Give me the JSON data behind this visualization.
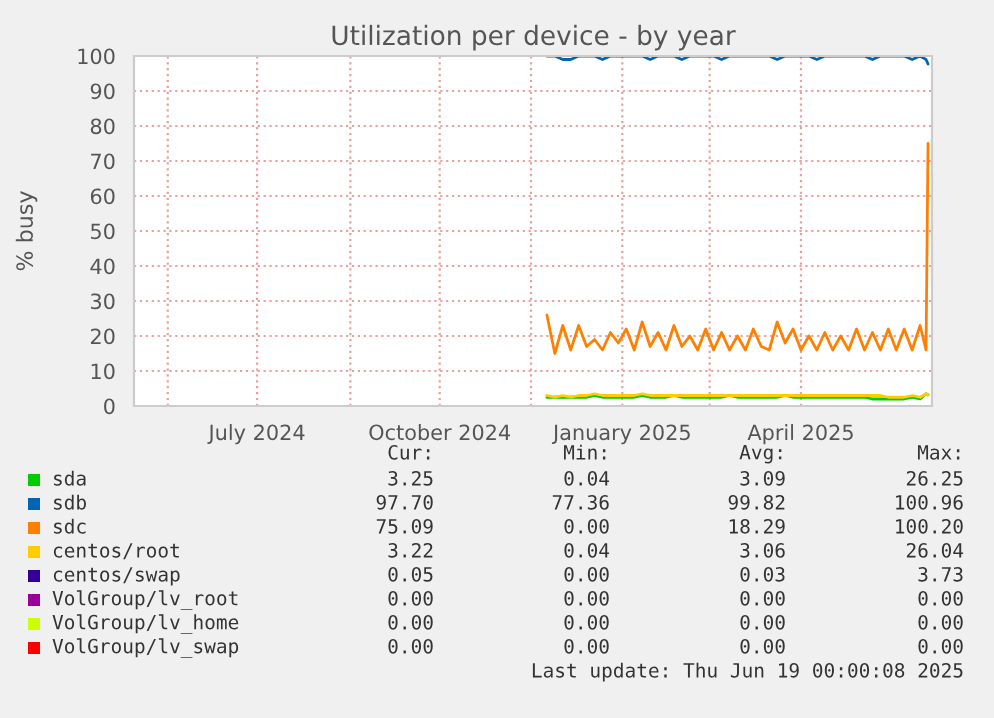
{
  "chart_data": {
    "type": "line",
    "title": "Utilization per device - by year",
    "ylabel": "% busy",
    "x": [
      "2024-12-09",
      "2024-12-13",
      "2024-12-17",
      "2024-12-21",
      "2024-12-25",
      "2024-12-29",
      "2025-01-02",
      "2025-01-06",
      "2025-01-10",
      "2025-01-14",
      "2025-01-18",
      "2025-01-22",
      "2025-01-26",
      "2025-01-30",
      "2025-02-03",
      "2025-02-07",
      "2025-02-11",
      "2025-02-15",
      "2025-02-19",
      "2025-02-23",
      "2025-02-27",
      "2025-03-03",
      "2025-03-07",
      "2025-03-11",
      "2025-03-15",
      "2025-03-19",
      "2025-03-23",
      "2025-03-27",
      "2025-03-31",
      "2025-04-04",
      "2025-04-08",
      "2025-04-12",
      "2025-04-16",
      "2025-04-20",
      "2025-04-24",
      "2025-04-28",
      "2025-05-02",
      "2025-05-06",
      "2025-05-10",
      "2025-05-14",
      "2025-05-18",
      "2025-05-22",
      "2025-05-26",
      "2025-05-30",
      "2025-06-03",
      "2025-06-07",
      "2025-06-11",
      "2025-06-15",
      "2025-06-18",
      "2025-06-19"
    ],
    "series": [
      {
        "name": "sda",
        "color": "#00cc00",
        "values": [
          2.5,
          2.5,
          2.5,
          2.5,
          2.5,
          2.5,
          3,
          2.5,
          2.5,
          2.5,
          2.5,
          2.5,
          3,
          2.5,
          2.5,
          2.5,
          3,
          2.5,
          2.5,
          2.5,
          2.5,
          2.5,
          2.5,
          3,
          2.5,
          2.5,
          2.5,
          2.5,
          2.5,
          2.5,
          3,
          2.5,
          2.5,
          2.5,
          2.5,
          2.5,
          2.5,
          2.5,
          2.5,
          2.5,
          2.5,
          2,
          2,
          2,
          2,
          2,
          2.5,
          2,
          3.5,
          3.2
        ]
      },
      {
        "name": "sdb",
        "color": "#0066b3",
        "values": [
          100,
          100,
          99,
          99,
          100,
          100,
          100,
          99,
          100,
          100,
          100,
          100,
          100,
          99,
          100,
          100,
          100,
          99,
          100,
          100,
          100,
          100,
          99,
          100,
          100,
          100,
          100,
          100,
          100,
          99,
          100,
          100,
          100,
          100,
          99,
          100,
          100,
          100,
          100,
          100,
          100,
          99,
          100,
          100,
          100,
          100,
          99,
          100,
          99,
          97.7
        ]
      },
      {
        "name": "sdc",
        "color": "#ff8000",
        "values": [
          26,
          15,
          23,
          16,
          23,
          17,
          19,
          16,
          21,
          18,
          22,
          16,
          24,
          17,
          21,
          16,
          23,
          17,
          20,
          16,
          22,
          16,
          21,
          16,
          20,
          16,
          22,
          17,
          16,
          24,
          18,
          22,
          16,
          20,
          16,
          21,
          16,
          20,
          16,
          22,
          16,
          21,
          16,
          22,
          16,
          22,
          16,
          23,
          16,
          75
        ]
      },
      {
        "name": "centos/root",
        "color": "#ffcc00",
        "values": [
          3,
          2.5,
          3,
          2.5,
          3,
          3,
          3.5,
          3,
          3,
          3,
          3,
          3,
          3.5,
          3,
          3,
          3,
          3,
          3,
          3,
          3,
          3,
          3,
          3,
          3,
          3,
          3,
          3,
          3,
          3,
          3,
          3,
          3,
          3,
          3,
          3,
          3,
          3,
          3,
          3,
          3,
          3,
          3,
          3,
          2.5,
          2.5,
          2.5,
          3,
          2.5,
          3.5,
          3.2
        ]
      },
      {
        "name": "centos/swap",
        "color": "#330099",
        "values": [
          null,
          null,
          null,
          null,
          null,
          null,
          null,
          null,
          null,
          null,
          null,
          null,
          null,
          null,
          null,
          null,
          null,
          null,
          null,
          null,
          null,
          null,
          null,
          null,
          null,
          null,
          null,
          null,
          null,
          null,
          null,
          null,
          null,
          null,
          null,
          null,
          null,
          null,
          null,
          null,
          null,
          null,
          null,
          null,
          null,
          null,
          null,
          null,
          null,
          null
        ]
      },
      {
        "name": "VolGroup/lv_root",
        "color": "#990099",
        "values": [
          null,
          null,
          null,
          null,
          null,
          null,
          null,
          null,
          null,
          null,
          null,
          null,
          null,
          null,
          null,
          null,
          null,
          null,
          null,
          null,
          null,
          null,
          null,
          null,
          null,
          null,
          null,
          null,
          null,
          null,
          null,
          null,
          null,
          null,
          null,
          null,
          null,
          null,
          null,
          null,
          null,
          null,
          null,
          null,
          null,
          null,
          null,
          null,
          null,
          null
        ]
      },
      {
        "name": "VolGroup/lv_home",
        "color": "#ccff00",
        "values": [
          null,
          null,
          null,
          null,
          null,
          null,
          null,
          null,
          null,
          null,
          null,
          null,
          null,
          null,
          null,
          null,
          null,
          null,
          null,
          null,
          null,
          null,
          null,
          null,
          null,
          null,
          null,
          null,
          null,
          null,
          null,
          null,
          null,
          null,
          null,
          null,
          null,
          null,
          null,
          null,
          null,
          null,
          null,
          null,
          null,
          null,
          null,
          null,
          null,
          null
        ]
      },
      {
        "name": "VolGroup/lv_swap",
        "color": "#ff0000",
        "values": [
          null,
          null,
          null,
          null,
          null,
          null,
          null,
          null,
          null,
          null,
          null,
          null,
          null,
          null,
          null,
          null,
          null,
          null,
          null,
          null,
          null,
          null,
          null,
          null,
          null,
          null,
          null,
          null,
          null,
          null,
          null,
          null,
          null,
          null,
          null,
          null,
          null,
          null,
          null,
          null,
          null,
          null,
          null,
          null,
          null,
          null,
          null,
          null,
          null,
          null
        ]
      }
    ],
    "xlim": [
      "2024-05-15",
      "2025-06-21"
    ],
    "xticks": [
      {
        "value": "2024-06-01",
        "label": null
      },
      {
        "value": "2024-07-16",
        "label": "July 2024"
      },
      {
        "value": "2024-09-01",
        "label": null
      },
      {
        "value": "2024-10-16",
        "label": "October 2024"
      },
      {
        "value": "2024-12-01",
        "label": null
      },
      {
        "value": "2025-01-16",
        "label": "January 2025"
      },
      {
        "value": "2025-03-01",
        "label": null
      },
      {
        "value": "2025-04-16",
        "label": "April 2025"
      }
    ],
    "ylim": [
      0,
      100
    ],
    "yticks": [
      0,
      10,
      20,
      30,
      40,
      50,
      60,
      70,
      80,
      90,
      100
    ],
    "grid": true,
    "legend": "bottom",
    "line_style": "solid",
    "marker": "none",
    "annotations": [
      "Cur:",
      "Min:",
      "Avg:",
      "Max:",
      "3.25",
      "0.04",
      "3.09",
      "26.25",
      "97.70",
      "77.36",
      "99.82",
      "100.96",
      "75.09",
      "0.00",
      "18.29",
      "100.20",
      "3.22",
      "0.04",
      "3.06",
      "26.04",
      "0.05",
      "0.00",
      "0.03",
      "3.73",
      "0.00",
      "0.00",
      "0.00",
      "0.00",
      "0.00",
      "0.00",
      "0.00",
      "0.00",
      "0.00",
      "0.00",
      "0.00",
      "0.00",
      "Last update: Thu Jun 19 00:00:08 2025"
    ]
  }
}
